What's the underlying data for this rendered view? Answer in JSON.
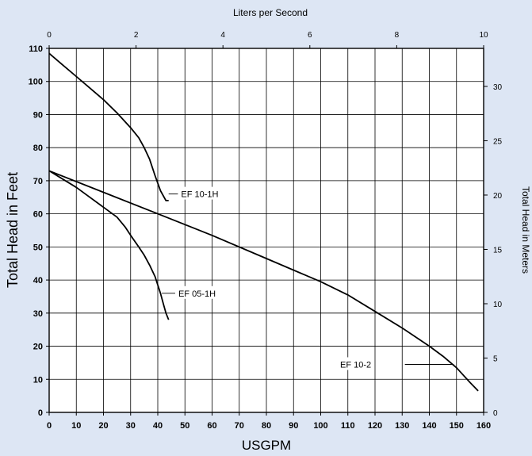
{
  "chart_data": {
    "type": "line",
    "top_axis_title": "Liters per Second",
    "bottom_axis_title": "USGPM",
    "left_axis_title": "Total Head in Feet",
    "right_axis_title": "Total Head in Meters",
    "x_range": [
      0,
      160
    ],
    "y_range": [
      0,
      110
    ],
    "x_ticks": [
      0,
      10,
      20,
      30,
      40,
      50,
      60,
      70,
      80,
      90,
      100,
      110,
      120,
      130,
      140,
      150,
      160
    ],
    "y_ticks": [
      0,
      10,
      20,
      30,
      40,
      50,
      60,
      70,
      80,
      90,
      100,
      110
    ],
    "top_range": [
      0,
      10
    ],
    "top_ticks": [
      0,
      2,
      4,
      6,
      8,
      10
    ],
    "right_range": [
      0,
      33.5
    ],
    "right_ticks": [
      0,
      5,
      10,
      15,
      20,
      25,
      30
    ],
    "grid": true,
    "series": [
      {
        "name": "EF 10-1H",
        "x": [
          0,
          5,
          10,
          15,
          20,
          25,
          30,
          33,
          35,
          37,
          39,
          41,
          43,
          44
        ],
        "y": [
          108.5,
          105,
          101.5,
          98,
          94.5,
          90.5,
          86,
          83,
          80,
          76.5,
          71.5,
          67,
          64,
          64
        ]
      },
      {
        "name": "EF 05-1H",
        "x": [
          0,
          5,
          10,
          15,
          20,
          25,
          28,
          30,
          33,
          35,
          37,
          39,
          40,
          41,
          42,
          43,
          44
        ],
        "y": [
          73,
          70.5,
          68,
          65,
          62,
          59,
          56,
          53.5,
          50,
          47.5,
          44.5,
          41,
          38.5,
          36,
          33,
          30,
          28
        ]
      },
      {
        "name": "EF 10-2",
        "x": [
          0,
          20,
          40,
          60,
          80,
          100,
          110,
          120,
          130,
          140,
          145,
          150,
          155,
          158
        ],
        "y": [
          73,
          66.5,
          60,
          53.5,
          46.5,
          39.5,
          35.5,
          30.5,
          25.5,
          20,
          17,
          13.5,
          9,
          6.5
        ]
      }
    ]
  }
}
